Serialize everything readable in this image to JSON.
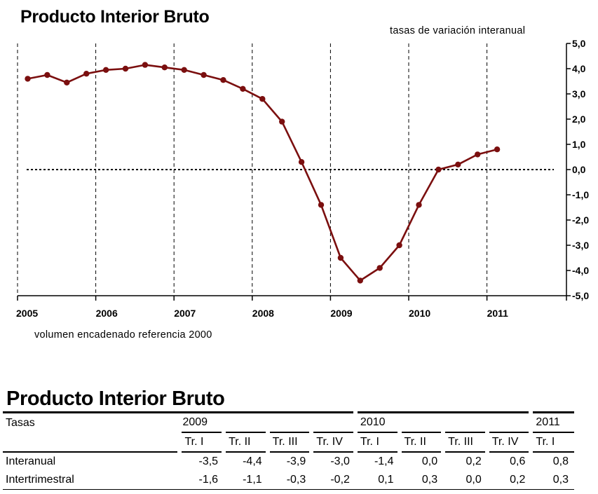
{
  "chart": {
    "title": "Producto Interior Bruto",
    "subtitle": "tasas de variación interanual",
    "note": "volumen encadenado referencia 2000"
  },
  "chart_data": {
    "type": "line",
    "title": "Producto Interior Bruto",
    "subtitle": "tasas de variación interanual",
    "x_tick_labels": [
      "2005",
      "2006",
      "2007",
      "2008",
      "2009",
      "2010",
      "2011"
    ],
    "y_tick_labels": [
      "5,0",
      "4,0",
      "3,0",
      "2,0",
      "1,0",
      "0,0",
      "-1,0",
      "-2,0",
      "-3,0",
      "-4,0",
      "-5,0"
    ],
    "ylim": [
      -5,
      5
    ],
    "y_axis_side": "right",
    "reference_line": 0,
    "vertical_gridlines": "dashed",
    "series": [
      {
        "line_color": "#7b0f0f",
        "x": [
          "2005 Tr. I",
          "2005 Tr. II",
          "2005 Tr. III",
          "2005 Tr. IV",
          "2006 Tr. I",
          "2006 Tr. II",
          "2006 Tr. III",
          "2006 Tr. IV",
          "2007 Tr. I",
          "2007 Tr. II",
          "2007 Tr. III",
          "2007 Tr. IV",
          "2008 Tr. I",
          "2008 Tr. II",
          "2008 Tr. III",
          "2008 Tr. IV",
          "2009 Tr. I",
          "2009 Tr. II",
          "2009 Tr. III",
          "2009 Tr. IV",
          "2010 Tr. I",
          "2010 Tr. II",
          "2010 Tr. III",
          "2010 Tr. IV",
          "2011 Tr. I"
        ],
        "values": [
          3.6,
          3.75,
          3.45,
          3.8,
          3.95,
          4.0,
          4.15,
          4.05,
          3.95,
          3.75,
          3.55,
          3.2,
          2.8,
          1.9,
          0.3,
          -1.4,
          -3.5,
          -4.4,
          -3.9,
          -3.0,
          -1.4,
          0.0,
          0.2,
          0.6,
          0.8
        ]
      }
    ]
  },
  "table": {
    "title": "Producto Interior Bruto",
    "header_label": "Tasas",
    "years": [
      {
        "label": "2009",
        "span": 4
      },
      {
        "label": "2010",
        "span": 4
      },
      {
        "label": "2011",
        "span": 1
      }
    ],
    "quarters": [
      "Tr. I",
      "Tr. II",
      "Tr. III",
      "Tr. IV",
      "Tr. I",
      "Tr. II",
      "Tr. III",
      "Tr. IV",
      "Tr. I"
    ],
    "rows": [
      {
        "label": "Interanual",
        "values": [
          "-3,5",
          "-4,4",
          "-3,9",
          "-3,0",
          "-1,4",
          "0,0",
          "0,2",
          "0,6",
          "0,8"
        ]
      },
      {
        "label": "Intertrimestral",
        "values": [
          "-1,6",
          "-1,1",
          "-0,3",
          "-0,2",
          "0,1",
          "0,3",
          "0,0",
          "0,2",
          "0,3"
        ]
      }
    ]
  }
}
